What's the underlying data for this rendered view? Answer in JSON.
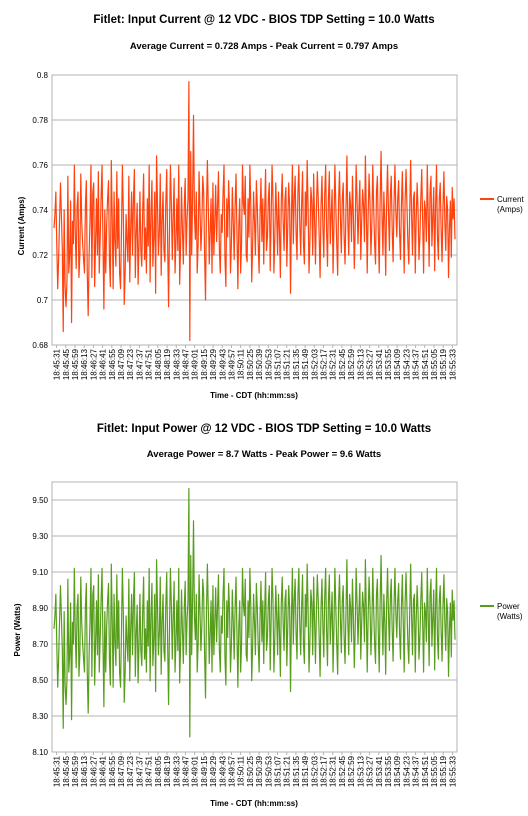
{
  "chart_data": [
    {
      "type": "line",
      "title": "Fitlet: Input Current @ 12 VDC - BIOS TDP Setting = 10.0 Watts",
      "subtitle": "Average Current = 0.728 Amps - Peak Current = 0.797 Amps",
      "xlabel": "Time - CDT (hh:mm:ss)",
      "ylabel": "Current (Amps)",
      "ylim": [
        0.68,
        0.8
      ],
      "yticks": [
        "0.68",
        "0.7",
        "0.72",
        "0.74",
        "0.76",
        "0.78",
        "0.8"
      ],
      "ytick_values": [
        0.68,
        0.7,
        0.72,
        0.74,
        0.76,
        0.78,
        0.8
      ],
      "legend_position": "right",
      "grid": true,
      "series": [
        {
          "name": "Current\n(Amps)",
          "legend_lines": [
            "Current",
            "(Amps)"
          ],
          "color": "#ff420e",
          "values": [
            0.732,
            0.738,
            0.748,
            0.725,
            0.705,
            0.718,
            0.735,
            0.752,
            0.738,
            0.722,
            0.686,
            0.74,
            0.706,
            0.697,
            0.708,
            0.755,
            0.712,
            0.72,
            0.744,
            0.69,
            0.735,
            0.725,
            0.76,
            0.73,
            0.714,
            0.742,
            0.748,
            0.71,
            0.72,
            0.756,
            0.735,
            0.725,
            0.718,
            0.712,
            0.742,
            0.753,
            0.712,
            0.693,
            0.72,
            0.736,
            0.76,
            0.71,
            0.748,
            0.752,
            0.706,
            0.726,
            0.745,
            0.72,
            0.757,
            0.712,
            0.728,
            0.746,
            0.76,
            0.725,
            0.696,
            0.74,
            0.712,
            0.733,
            0.745,
            0.753,
            0.718,
            0.706,
            0.762,
            0.737,
            0.705,
            0.748,
            0.726,
            0.715,
            0.757,
            0.723,
            0.745,
            0.712,
            0.705,
            0.73,
            0.76,
            0.74,
            0.698,
            0.712,
            0.738,
            0.726,
            0.717,
            0.755,
            0.708,
            0.732,
            0.748,
            0.72,
            0.745,
            0.758,
            0.71,
            0.73,
            0.743,
            0.707,
            0.725,
            0.748,
            0.722,
            0.715,
            0.74,
            0.756,
            0.718,
            0.732,
            0.712,
            0.745,
            0.724,
            0.76,
            0.708,
            0.738,
            0.753,
            0.715,
            0.727,
            0.748,
            0.703,
            0.764,
            0.743,
            0.72,
            0.73,
            0.756,
            0.711,
            0.735,
            0.748,
            0.722,
            0.717,
            0.743,
            0.758,
            0.725,
            0.697,
            0.732,
            0.76,
            0.743,
            0.718,
            0.737,
            0.754,
            0.712,
            0.726,
            0.745,
            0.722,
            0.76,
            0.707,
            0.724,
            0.75,
            0.731,
            0.716,
            0.742,
            0.754,
            0.72,
            0.736,
            0.745,
            0.713,
            0.749,
            0.766,
            0.72,
            0.745,
            0.782,
            0.738,
            0.727,
            0.748,
            0.712,
            0.725,
            0.757,
            0.74,
            0.722,
            0.733,
            0.755,
            0.748,
            0.72,
            0.7,
            0.74,
            0.762,
            0.741,
            0.716,
            0.73,
            0.745,
            0.712,
            0.752,
            0.72,
            0.735,
            0.751,
            0.726,
            0.742,
            0.757,
            0.722,
            0.712,
            0.738,
            0.73,
            0.748,
            0.76,
            0.719,
            0.706,
            0.745,
            0.728,
            0.753,
            0.74,
            0.712,
            0.725,
            0.75,
            0.735,
            0.718,
            0.742,
            0.756,
            0.73,
            0.705,
            0.733,
            0.745,
            0.712,
            0.725,
            0.76,
            0.743,
            0.738,
            0.755,
            0.72,
            0.717,
            0.745,
            0.728,
            0.76,
            0.742,
            0.708,
            0.725,
            0.748,
            0.735,
            0.72,
            0.753,
            0.742,
            0.725,
            0.712,
            0.738,
            0.754,
            0.726,
            0.745,
            0.716,
            0.74,
            0.758,
            0.722,
            0.728,
            0.745,
            0.752,
            0.713,
            0.736,
            0.76,
            0.745,
            0.712,
            0.728,
            0.752,
            0.738,
            0.72,
            0.748,
            0.731,
            0.71,
            0.744,
            0.756,
            0.735,
            0.722,
            0.745,
            0.75,
            0.715,
            0.733,
            0.752,
            0.742,
            0.703,
            0.738,
            0.76,
            0.725,
            0.745,
            0.755,
            0.73,
            0.718,
            0.748,
            0.76,
            0.734,
            0.72,
            0.742,
            0.757,
            0.725,
            0.716,
            0.748,
            0.733,
            0.762,
            0.741,
            0.712,
            0.727,
            0.75,
            0.744,
            0.72,
            0.756,
            0.736,
            0.716,
            0.74,
            0.757,
            0.745,
            0.728,
            0.71,
            0.742,
            0.755,
            0.733,
            0.719,
            0.747,
            0.76,
            0.731,
            0.715,
            0.745,
            0.757,
            0.725,
            0.738,
            0.749,
            0.712,
            0.733,
            0.76,
            0.742,
            0.725,
            0.711,
            0.744,
            0.757,
            0.736,
            0.721,
            0.745,
            0.752,
            0.728,
            0.716,
            0.74,
            0.764,
            0.735,
            0.72,
            0.748,
            0.742,
            0.726,
            0.755,
            0.738,
            0.714,
            0.732,
            0.76,
            0.744,
            0.725,
            0.74,
            0.753,
            0.718,
            0.735,
            0.749,
            0.742,
            0.726,
            0.764,
            0.74,
            0.712,
            0.738,
            0.756,
            0.743,
            0.72,
            0.733,
            0.76,
            0.741,
            0.725,
            0.716,
            0.748,
            0.755,
            0.73,
            0.712,
            0.745,
            0.766,
            0.738,
            0.72,
            0.748,
            0.735,
            0.711,
            0.744,
            0.76,
            0.739,
            0.722,
            0.746,
            0.755,
            0.732,
            0.717,
            0.743,
            0.76,
            0.739,
            0.728,
            0.745,
            0.753,
            0.73,
            0.718,
            0.742,
            0.757,
            0.735,
            0.712,
            0.744,
            0.758,
            0.742,
            0.725,
            0.716,
            0.74,
            0.762,
            0.738,
            0.72,
            0.745,
            0.748,
            0.712,
            0.736,
            0.752,
            0.74,
            0.718,
            0.728,
            0.745,
            0.758,
            0.735,
            0.712,
            0.744,
            0.74,
            0.726,
            0.76,
            0.738,
            0.715,
            0.748,
            0.755,
            0.724,
            0.737,
            0.75,
            0.713,
            0.742,
            0.76,
            0.728,
            0.718,
            0.745,
            0.752,
            0.731,
            0.717,
            0.742,
            0.757,
            0.735,
            0.722,
            0.746,
            0.74,
            0.71,
            0.732,
            0.744,
            0.719,
            0.75,
            0.736,
            0.745,
            0.727
          ],
          "highlights": [
            {
              "index": 146,
              "value": 0.797
            },
            {
              "index": 147,
              "value": 0.682
            }
          ]
        }
      ]
    },
    {
      "type": "line",
      "title": "Fitlet: Input Power @ 12 VDC - BIOS TDP Setting = 10.0 Watts",
      "subtitle": "Average Power = 8.7 Watts - Peak Power = 9.6 Watts",
      "xlabel": "Time - CDT (hh:mm:ss)",
      "ylabel": "Power (Watts)",
      "ylim": [
        8.1,
        9.6
      ],
      "yticks": [
        "8.10",
        "8.30",
        "8.50",
        "8.70",
        "8.90",
        "9.10",
        "9.30",
        "9.50"
      ],
      "ytick_values": [
        8.1,
        8.3,
        8.5,
        8.7,
        8.9,
        9.1,
        9.3,
        9.5
      ],
      "legend_position": "right",
      "grid": true,
      "series": [
        {
          "name": "Power\n(Watts)",
          "legend_lines": [
            "Power",
            "(Watts)"
          ],
          "color": "#579d1c",
          "scale_from_current": 12.0
        }
      ]
    }
  ],
  "x_ticks": [
    "18:45:31",
    "18:45:45",
    "18:45:59",
    "18:46:13",
    "18:46:27",
    "18:46:41",
    "18:46:55",
    "18:47:09",
    "18:47:23",
    "18:47:37",
    "18:47:51",
    "18:48:05",
    "18:48:19",
    "18:48:33",
    "18:48:47",
    "18:49:01",
    "18:49:15",
    "18:49:29",
    "18:49:43",
    "18:49:57",
    "18:50:11",
    "18:50:25",
    "18:50:39",
    "18:50:53",
    "18:51:07",
    "18:51:21",
    "18:51:35",
    "18:51:49",
    "18:52:03",
    "18:52:17",
    "18:52:31",
    "18:52:45",
    "18:52:59",
    "18:53:13",
    "18:53:27",
    "18:53:41",
    "18:53:55",
    "18:54:09",
    "18:54:23",
    "18:54:37",
    "18:54:51",
    "18:55:05",
    "18:55:19",
    "18:55:33"
  ]
}
